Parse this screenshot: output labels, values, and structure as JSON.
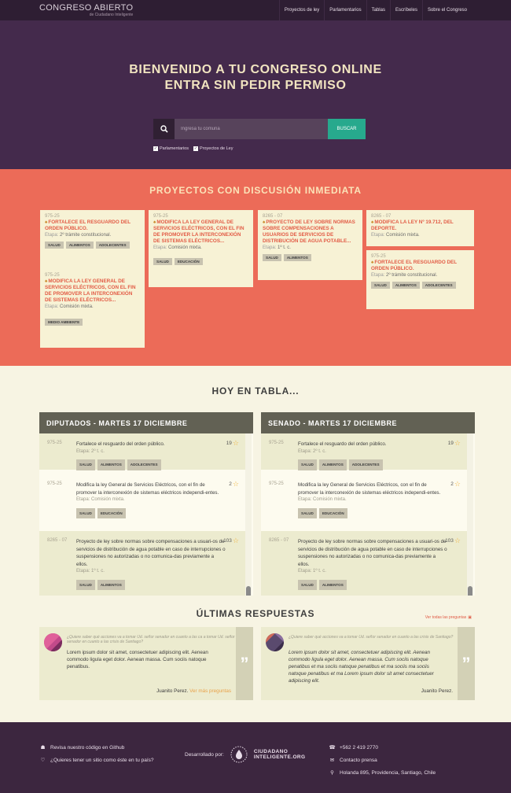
{
  "nav": {
    "logo_title": "CONGRESO ABIERTO",
    "logo_sub": "de Ciudadano Inteligente",
    "links": [
      "Proyectos de ley",
      "Parlamentarios",
      "Tablas",
      "Escríbeles",
      "Sobre el Congreso"
    ]
  },
  "hero": {
    "line1": "BIENVENIDO A TU CONGRESO ONLINE",
    "line2": "ENTRA SIN PEDIR PERMISO",
    "search_placeholder": "Ingresa tu comuna",
    "search_button": "BUSCAR",
    "check1": "Parlamentarios",
    "check2": "Proyectos de Ley"
  },
  "urgent": {
    "title": "PROYECTOS CON DISCUSIÓN INMEDIATA",
    "cards": [
      {
        "num": "975-25",
        "title": "FORTALECE EL RESGUARDO DEL ORDEN PÚBLICO.",
        "stage_label": "Etapa:",
        "stage": "2º trámite constitucional.",
        "tags": [
          "SALUD",
          "ALIMENTOS",
          "ADOLECENTES"
        ]
      },
      {
        "num": "975-25",
        "title": "MODIFICA LA LEY GENERAL DE SERVICIOS ELÉCTRICOS, CON EL FIN DE PROMOVER LA INTERCONEXIÓN DE SISTEMAS ELÉCTRICOS...",
        "stage_label": "Etapa:",
        "stage": "Comisión mixta.",
        "tags": [
          "MEDIO AMBIENTE"
        ]
      },
      {
        "num": "975-25",
        "title": "MODIFICA LA LEY GENERAL DE SERVICIOS ELÉCTRICOS, CON EL FIN DE PROMOVER LA INTERCONEXIÓN DE SISTEMAS ELÉCTRICOS...",
        "stage_label": "Etapa:",
        "stage": "Comisión mixta.",
        "tags": [
          "SALUD",
          "EDUCACIÓN"
        ]
      },
      {
        "num": "8265 - 07",
        "title": "PROYECTO DE LEY SOBRE NORMAS SOBRE COMPENSACIONES A USUARIOS DE SERVICIOS DE DISTRIBUCIÓN DE AGUA POTABLE...",
        "stage_label": "Etapa:",
        "stage": "1º t. c.",
        "tags": [
          "SALUD",
          "ALIMENTOS"
        ]
      },
      {
        "num": "8265 - 07",
        "title": "MODIFICA LA LEY Nº 19.712, DEL DEPORTE.",
        "stage_label": "Etapa:",
        "stage": "Comisión mixta.",
        "tags": []
      },
      {
        "num": "975-25",
        "title": "FORTALECE EL RESGUARDO DEL ORDEN PÚBLICO.",
        "stage_label": "Etapa:",
        "stage": "2º trámite constitucional.",
        "tags": [
          "SALUD",
          "ALIMENTOS",
          "ADOLECENTES"
        ]
      }
    ]
  },
  "hoy": {
    "title": "HOY EN TABLA...",
    "panels": [
      {
        "header": "DIPUTADOS - MARTES 17 DICIEMBRE",
        "items": [
          {
            "num": "975-25",
            "text": "Fortalece el resguardo del orden público.",
            "stage": "Etapa: 2º t. c.",
            "count": "19",
            "tags": [
              "SALUD",
              "ALIMENTOS",
              "ADOLECENTES"
            ]
          },
          {
            "num": "975-25",
            "text": "Modifica la ley General de Servicios Eléctricos, con el fin de promover la interconexión de sistemas eléctricos independi-entes.",
            "stage": "Etapa: Comisión mixta.",
            "count": "2",
            "tags": [
              "SALUD",
              "EDUCACIÓN"
            ]
          },
          {
            "num": "8265 - 07",
            "text": "Proyecto de ley sobre normas sobre compensaciones a usuari-os de servicios de distribución de agua potable en caso de interrupciones o suspensiones no autorizadas o no comunica-das previamente a ellos.",
            "stage": "Etapa: 1º t. c.",
            "count": "103",
            "tags": [
              "SALUD",
              "ALIMENTOS"
            ]
          }
        ]
      },
      {
        "header": "SENADO - MARTES 17 DICIEMBRE",
        "items": [
          {
            "num": "975-25",
            "text": "Fortalece el resguardo del orden público.",
            "stage": "Etapa: 2º t. c.",
            "count": "19",
            "tags": [
              "SALUD",
              "ALIMENTOS",
              "ADOLECENTES"
            ]
          },
          {
            "num": "975-25",
            "text": "Modifica la ley General de Servicios Eléctricos, con el fin de promover la interconexión de sistemas eléctricos independi-entes.",
            "stage": "Etapa: Comisión mixta.",
            "count": "2",
            "tags": [
              "SALUD",
              "EDUCACIÓN"
            ]
          },
          {
            "num": "8265 - 07",
            "text": "Proyecto de ley sobre normas sobre compensaciones a usuari-os de servicios de distribución de agua potable en caso de interrupciones o suspensiones no autorizadas o no comunica-das previamente a ellos.",
            "stage": "Etapa: 1º t. c.",
            "count": "103",
            "tags": [
              "SALUD",
              "ALIMENTOS"
            ]
          }
        ]
      }
    ]
  },
  "ultimas": {
    "title": "ÚLTIMAS RESPUESTAS",
    "view_all": "Ver todas las preguntas",
    "responses": [
      {
        "question": "¿Quiere saber qué acciones va a tomar Ud. señor senador en cuanto a las ca a tomar Ud. señor senador en cuanto a las crisis de Santiago?",
        "answer": "Lorem ipsum dolor sit amet, consectetuer adipiscing elit. Aenean commodo ligula eget dolor. Aenean massa. Cum sociis natoque penatibus.",
        "author": "Juanito Perez.",
        "more": "Ver más preguntas"
      },
      {
        "question": "¿Quiere saber qué acciones va a tomar Ud. señor senador en cuanto a las crisis de Santiago?",
        "answer": "Lorem ipsum dolor sit amet, consectetuer adipiscing elit. Aenean commodo ligula eget dolor. Aenean massa. Cum sociis natoque penatibus et ma sociis natoque penatibus et ma sociis ma sociis natoque penatibus et ma Lorem ipsum dolor sit amet consectetuer adipiscing elit.",
        "author": "Juanito Perez.",
        "more": ""
      }
    ]
  },
  "footer": {
    "github": "Revisa nuestro código en Github",
    "want": "¿Quieres tener un sitio como éste en tu país?",
    "developed": "Desarrollado por:",
    "org_line1": "CIUDADANO",
    "org_line2": "INTELIGENTE.ORG",
    "phone": "+562 2 419 2770",
    "press": "Contacto prensa",
    "address": "Holanda 895, Providencia, Santiago, Chile"
  },
  "colors": {
    "nav": "#2e1e33",
    "hero": "#442a4c",
    "urgent": "#ec6b58",
    "accent": "#27a98d"
  }
}
